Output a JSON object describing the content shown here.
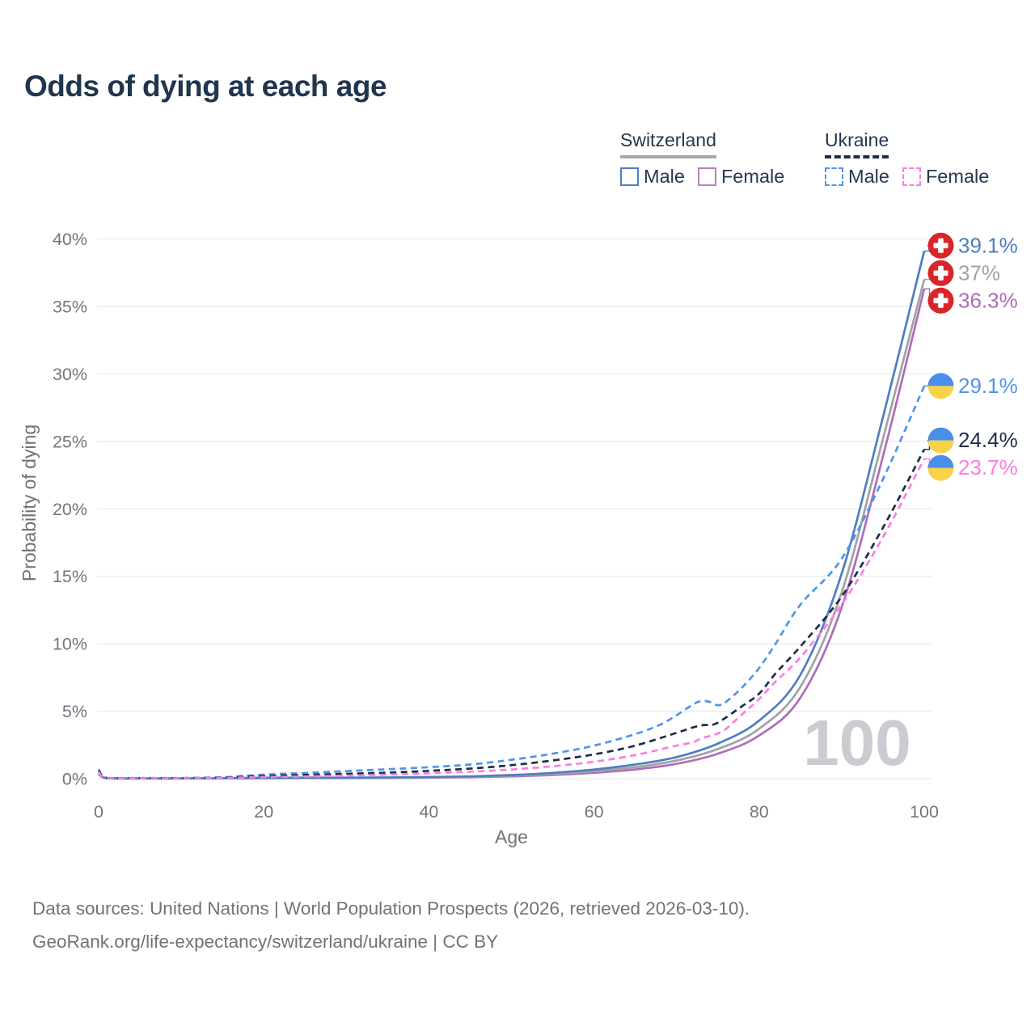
{
  "title": "Odds of dying at each age",
  "legend": {
    "groups": [
      {
        "label": "Switzerland",
        "rule_style": "solid",
        "rule_color": "#a8a8ab",
        "items": [
          {
            "label": "Male",
            "swatch_color": "#4d7ec0",
            "swatch_style": "solid"
          },
          {
            "label": "Female",
            "swatch_color": "#bd7ec0",
            "swatch_style": "solid"
          }
        ]
      },
      {
        "label": "Ukraine",
        "rule_style": "dashed",
        "rule_color": "#1e2e47",
        "items": [
          {
            "label": "Male",
            "swatch_color": "#4f94ec",
            "swatch_style": "dashed"
          },
          {
            "label": "Female",
            "swatch_color": "#fb7de2",
            "swatch_style": "dashed"
          }
        ]
      }
    ]
  },
  "chart_data": {
    "type": "line",
    "title": "Odds of dying at each age",
    "xlabel": "Age",
    "ylabel": "Probability of dying",
    "xlim": [
      0,
      100
    ],
    "ylim": [
      0,
      40
    ],
    "x_ticks": [
      0,
      20,
      40,
      60,
      80,
      100
    ],
    "y_ticks": [
      {
        "value": 0,
        "label": "0%"
      },
      {
        "value": 5,
        "label": "5%"
      },
      {
        "value": 10,
        "label": "10%"
      },
      {
        "value": 15,
        "label": "15%"
      },
      {
        "value": 20,
        "label": "20%"
      },
      {
        "value": 25,
        "label": "25%"
      },
      {
        "value": 30,
        "label": "30%"
      },
      {
        "value": 35,
        "label": "35%"
      },
      {
        "value": 40,
        "label": "40%"
      }
    ],
    "grid": true,
    "legend_position": "top-right",
    "watermark": "100",
    "series": [
      {
        "id": "switzerland-male",
        "name": "Switzerland Male",
        "country": "Switzerland",
        "sex": "Male",
        "line": "solid",
        "color": "#4d7ec0",
        "end_label": "39.1%",
        "end_value": 39.1,
        "flag": "ch",
        "points": [
          [
            0,
            0.42
          ],
          [
            1,
            0.04
          ],
          [
            5,
            0.02
          ],
          [
            10,
            0.02
          ],
          [
            15,
            0.04
          ],
          [
            20,
            0.07
          ],
          [
            25,
            0.08
          ],
          [
            30,
            0.08
          ],
          [
            35,
            0.09
          ],
          [
            40,
            0.12
          ],
          [
            45,
            0.17
          ],
          [
            50,
            0.27
          ],
          [
            55,
            0.43
          ],
          [
            60,
            0.68
          ],
          [
            65,
            1.05
          ],
          [
            70,
            1.6
          ],
          [
            75,
            2.6
          ],
          [
            80,
            4.3
          ],
          [
            85,
            7.7
          ],
          [
            90,
            15.2
          ],
          [
            95,
            26.8
          ],
          [
            100,
            39.1
          ]
        ]
      },
      {
        "id": "switzerland-both",
        "name": "Switzerland Both sexes",
        "country": "Switzerland",
        "sex": "Both",
        "line": "solid",
        "color": "#a2a2a5",
        "end_label": "37%",
        "end_value": 37,
        "flag": "ch",
        "points": [
          [
            0,
            0.38
          ],
          [
            1,
            0.03
          ],
          [
            5,
            0.02
          ],
          [
            10,
            0.02
          ],
          [
            15,
            0.03
          ],
          [
            20,
            0.05
          ],
          [
            25,
            0.06
          ],
          [
            30,
            0.06
          ],
          [
            35,
            0.07
          ],
          [
            40,
            0.1
          ],
          [
            45,
            0.14
          ],
          [
            50,
            0.22
          ],
          [
            55,
            0.35
          ],
          [
            60,
            0.55
          ],
          [
            65,
            0.85
          ],
          [
            70,
            1.35
          ],
          [
            75,
            2.2
          ],
          [
            80,
            3.7
          ],
          [
            85,
            6.8
          ],
          [
            90,
            13.8
          ],
          [
            95,
            25.2
          ],
          [
            100,
            37
          ]
        ]
      },
      {
        "id": "switzerland-female",
        "name": "Switzerland Female",
        "country": "Switzerland",
        "sex": "Female",
        "line": "solid",
        "color": "#ae6cba",
        "end_label": "36.3%",
        "end_value": 36.3,
        "flag": "ch",
        "points": [
          [
            0,
            0.35
          ],
          [
            1,
            0.03
          ],
          [
            5,
            0.01
          ],
          [
            10,
            0.01
          ],
          [
            15,
            0.02
          ],
          [
            20,
            0.03
          ],
          [
            25,
            0.04
          ],
          [
            30,
            0.04
          ],
          [
            35,
            0.05
          ],
          [
            40,
            0.08
          ],
          [
            45,
            0.11
          ],
          [
            50,
            0.17
          ],
          [
            55,
            0.27
          ],
          [
            60,
            0.44
          ],
          [
            65,
            0.68
          ],
          [
            70,
            1.1
          ],
          [
            75,
            1.85
          ],
          [
            80,
            3.2
          ],
          [
            85,
            6
          ],
          [
            90,
            12.7
          ],
          [
            95,
            23.9
          ],
          [
            100,
            36.3
          ]
        ]
      },
      {
        "id": "ukraine-male",
        "name": "Ukraine Male",
        "country": "Ukraine",
        "sex": "Male",
        "line": "dashed",
        "color": "#4f94ec",
        "end_label": "29.1%",
        "end_value": 29.1,
        "flag": "ua",
        "points": [
          [
            0,
            0.7
          ],
          [
            1,
            0.06
          ],
          [
            5,
            0.05
          ],
          [
            10,
            0.05
          ],
          [
            15,
            0.1
          ],
          [
            20,
            0.3
          ],
          [
            25,
            0.42
          ],
          [
            30,
            0.56
          ],
          [
            35,
            0.7
          ],
          [
            40,
            0.85
          ],
          [
            45,
            1.05
          ],
          [
            50,
            1.4
          ],
          [
            55,
            1.85
          ],
          [
            60,
            2.45
          ],
          [
            65,
            3.3
          ],
          [
            68,
            4
          ],
          [
            70,
            4.7
          ],
          [
            72,
            5.5
          ],
          [
            73,
            5.75
          ],
          [
            74,
            5.7
          ],
          [
            75,
            5.45
          ],
          [
            76,
            5.7
          ],
          [
            78,
            6.8
          ],
          [
            80,
            8.2
          ],
          [
            82,
            10
          ],
          [
            85,
            12.9
          ],
          [
            90,
            16.3
          ],
          [
            95,
            22.2
          ],
          [
            100,
            29.1
          ]
        ]
      },
      {
        "id": "ukraine-both",
        "name": "Ukraine Both sexes",
        "country": "Ukraine",
        "sex": "Both",
        "line": "dashed",
        "color": "#1e2e47",
        "end_label": "24.4%",
        "end_value": 24.4,
        "flag": "ua",
        "points": [
          [
            0,
            0.6
          ],
          [
            1,
            0.05
          ],
          [
            5,
            0.04
          ],
          [
            10,
            0.04
          ],
          [
            15,
            0.07
          ],
          [
            20,
            0.2
          ],
          [
            25,
            0.28
          ],
          [
            30,
            0.36
          ],
          [
            35,
            0.45
          ],
          [
            40,
            0.58
          ],
          [
            45,
            0.75
          ],
          [
            50,
            1
          ],
          [
            55,
            1.35
          ],
          [
            60,
            1.8
          ],
          [
            65,
            2.45
          ],
          [
            70,
            3.4
          ],
          [
            72,
            3.8
          ],
          [
            73,
            3.95
          ],
          [
            74,
            4
          ],
          [
            75,
            4.15
          ],
          [
            78,
            5.4
          ],
          [
            80,
            6.3
          ],
          [
            82,
            7.8
          ],
          [
            85,
            9.8
          ],
          [
            90,
            13.5
          ],
          [
            95,
            18.6
          ],
          [
            100,
            24.4
          ]
        ]
      },
      {
        "id": "ukraine-female",
        "name": "Ukraine Female",
        "country": "Ukraine",
        "sex": "Female",
        "line": "dashed",
        "color": "#fb7de2",
        "end_label": "23.7%",
        "end_value": 23.7,
        "flag": "ua",
        "points": [
          [
            0,
            0.5
          ],
          [
            1,
            0.04
          ],
          [
            5,
            0.03
          ],
          [
            10,
            0.03
          ],
          [
            15,
            0.05
          ],
          [
            20,
            0.12
          ],
          [
            25,
            0.16
          ],
          [
            30,
            0.22
          ],
          [
            35,
            0.3
          ],
          [
            40,
            0.4
          ],
          [
            45,
            0.52
          ],
          [
            50,
            0.68
          ],
          [
            55,
            0.92
          ],
          [
            60,
            1.25
          ],
          [
            65,
            1.75
          ],
          [
            70,
            2.45
          ],
          [
            72,
            2.7
          ],
          [
            73,
            3
          ],
          [
            74,
            3.15
          ],
          [
            75,
            3.35
          ],
          [
            76,
            3.7
          ],
          [
            78,
            4.8
          ],
          [
            80,
            5.9
          ],
          [
            82,
            7.2
          ],
          [
            85,
            9
          ],
          [
            90,
            12.9
          ],
          [
            95,
            17.9
          ],
          [
            100,
            23.7
          ]
        ]
      }
    ],
    "flag_colors": {
      "ch_red": "#d8252c",
      "ch_cross": "#ffffff",
      "ua_blue": "#4a8ee8",
      "ua_yellow": "#f8d348"
    }
  },
  "colors": {
    "title_text": "#20364e",
    "axis_text": "#73767d",
    "axis_title_text": "#6e7278",
    "gridline": "#ebebee",
    "watermark": "#cbcbd1"
  },
  "footer": {
    "line1": "Data sources: United Nations | World Population Prospects (2026, retrieved 2026-03-10).",
    "line2": "GeoRank.org/life-expectancy/switzerland/ukraine | CC BY"
  }
}
